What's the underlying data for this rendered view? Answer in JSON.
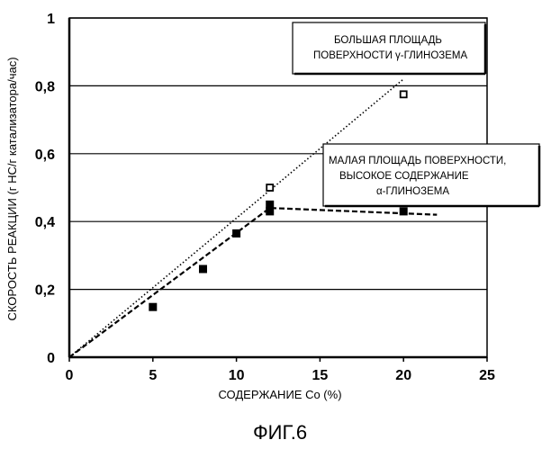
{
  "chart_data": {
    "type": "scatter",
    "xlabel": "СОДЕРЖАНИЕ Co (%)",
    "ylabel": "СКОРОСТЬ РЕАКЦИИ (г HC/г катализатора/час)",
    "xlim": [
      0,
      25
    ],
    "ylim": [
      0,
      1
    ],
    "x_ticks": [
      "0",
      "5",
      "10",
      "15",
      "20",
      "25"
    ],
    "y_ticks": [
      "0",
      "0,2",
      "0,4",
      "0,6",
      "0,8",
      "1"
    ],
    "grid": "horizontal",
    "series": [
      {
        "marker": "open-square",
        "points": [
          [
            12,
            0.5
          ],
          [
            20,
            0.775
          ]
        ],
        "trend_line": {
          "style": "dotted",
          "from": [
            0,
            0
          ],
          "to": [
            20,
            0.82
          ]
        }
      },
      {
        "marker": "filled-square",
        "points": [
          [
            5,
            0.148
          ],
          [
            8,
            0.26
          ],
          [
            10,
            0.365
          ],
          [
            12,
            0.43
          ],
          [
            12,
            0.45
          ],
          [
            20,
            0.43
          ]
        ],
        "trend_line": {
          "style": "dashed",
          "points": [
            [
              0,
              0
            ],
            [
              12,
              0.44
            ],
            [
              22,
              0.42
            ]
          ]
        }
      }
    ],
    "annotations": [
      {
        "lines": [
          "БОЛЬШАЯ ПЛОЩАДЬ",
          "ПОВЕРХНОСТИ γ-ГЛИНОЗЕМА"
        ]
      },
      {
        "lines": [
          "МАЛАЯ ПЛОЩАДЬ ПОВЕРХНОСТИ,",
          "ВЫСОКОЕ СОДЕРЖАНИЕ",
          "α-ГЛИНОЗЕМА"
        ]
      }
    ]
  },
  "figure_caption": "ФИГ.6"
}
